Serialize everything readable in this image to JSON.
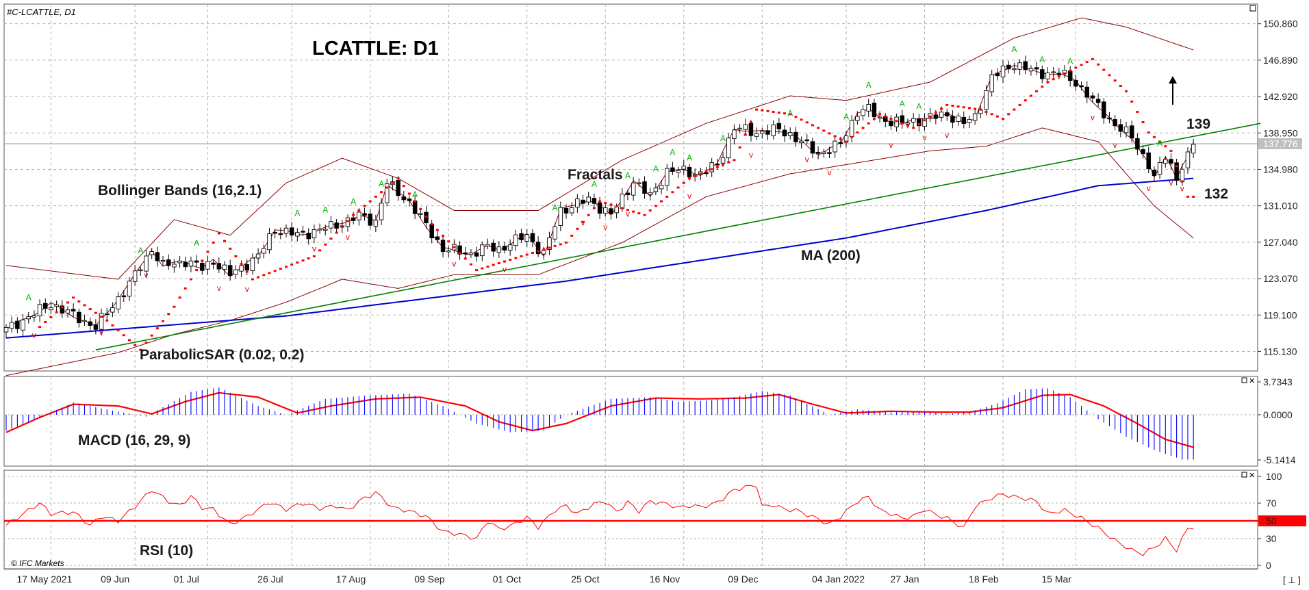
{
  "symbol": "#C-LCATTLE, D1",
  "title": "LCATTLE: D1",
  "brand": "© IFC Markets",
  "corner_label": "[ ⊥ ]",
  "colors": {
    "bull": "#ffffff",
    "bear": "#000000",
    "wick": "#000000",
    "bollinger": "#8b0000",
    "ma": "#0000cc",
    "trend": "#008000",
    "sar": "#ff0000",
    "fractal_up": "#00b000",
    "fractal_down": "#e00000",
    "macd_hist": "#0000ff",
    "macd_signal": "#ff0000",
    "rsi": "#ff0000",
    "rsi_level": "#ff0000",
    "grid": "#b0b0b0",
    "price_tag": "#c0c0c0",
    "level_tag": "#ff0000"
  },
  "annotations": {
    "bollinger": "Bollinger Bands (16,2.1)",
    "fractals": "Fractals",
    "ma": "MA (200)",
    "sar": "ParabolicSAR (0.02, 0.2)",
    "macd": "MACD (16, 29, 9)",
    "rsi": "RSI (10)",
    "target_up": "139",
    "target_down": "132"
  },
  "chart_data": [
    {
      "type": "candlestick",
      "panel": "price",
      "title": "LCATTLE: D1",
      "y_ticks": [
        "150.860",
        "146.890",
        "142.920",
        "138.950",
        "134.980",
        "131.010",
        "127.040",
        "123.070",
        "119.100",
        "115.130"
      ],
      "ylim": [
        113.0,
        153.0
      ],
      "current_price": "137.776",
      "x_tick_labels": [
        "17 May 2021",
        "09 Jun",
        "01 Jul",
        "26 Jul",
        "17 Aug",
        "09 Sep",
        "01 Oct",
        "25 Oct",
        "16 Nov",
        "09 Dec",
        "04 Jan 2022",
        "27 Jan",
        "18 Feb",
        "15 Mar"
      ],
      "anchors_close": [
        [
          0,
          117.5
        ],
        [
          8,
          120.3
        ],
        [
          16,
          117.8
        ],
        [
          22,
          122.5
        ],
        [
          26,
          126.3
        ],
        [
          28,
          124.4
        ],
        [
          32,
          125.0
        ],
        [
          35,
          124.2
        ],
        [
          37,
          125.0
        ],
        [
          40,
          123.5
        ],
        [
          45,
          125.5
        ],
        [
          48,
          128.5
        ],
        [
          52,
          127.8
        ],
        [
          58,
          128.7
        ],
        [
          63,
          129.9
        ],
        [
          66,
          129.3
        ],
        [
          68,
          133.5
        ],
        [
          72,
          131.4
        ],
        [
          78,
          126.3
        ],
        [
          83,
          125.8
        ],
        [
          86,
          126.5
        ],
        [
          88,
          126.3
        ],
        [
          93,
          127.8
        ],
        [
          96,
          125.7
        ],
        [
          99,
          130.5
        ],
        [
          104,
          131.7
        ],
        [
          108,
          130.0
        ],
        [
          112,
          133.7
        ],
        [
          115,
          132.0
        ],
        [
          118,
          134.8
        ],
        [
          121,
          134.8
        ],
        [
          124,
          134.5
        ],
        [
          127,
          135.5
        ],
        [
          130,
          139.5
        ],
        [
          134,
          139.0
        ],
        [
          138,
          139.3
        ],
        [
          140,
          138.8
        ],
        [
          145,
          136.7
        ],
        [
          149,
          137.7
        ],
        [
          152,
          141.3
        ],
        [
          154,
          141.5
        ],
        [
          156,
          140.5
        ],
        [
          160,
          140.0
        ],
        [
          164,
          140.5
        ],
        [
          168,
          141.0
        ],
        [
          171,
          140.0
        ],
        [
          173,
          140.7
        ],
        [
          176,
          145.0
        ],
        [
          180,
          146.5
        ],
        [
          184,
          145.5
        ],
        [
          188,
          145.5
        ],
        [
          191,
          144.5
        ],
        [
          195,
          141.8
        ],
        [
          198,
          139.8
        ],
        [
          201,
          138.5
        ],
        [
          204,
          135.5
        ],
        [
          205,
          134.0
        ],
        [
          207,
          136.5
        ],
        [
          208,
          135.5
        ],
        [
          209,
          134.0
        ],
        [
          210,
          135.3
        ],
        [
          211,
          136.2
        ],
        [
          212,
          137.8
        ]
      ],
      "series": [
        {
          "name": "Bollinger Bands (16,2.1)",
          "upper": [
            [
              0,
              124.5
            ],
            [
              20,
              123.0
            ],
            [
              30,
              129.5
            ],
            [
              40,
              127.8
            ],
            [
              50,
              133.5
            ],
            [
              60,
              136.2
            ],
            [
              70,
              134.0
            ],
            [
              80,
              130.5
            ],
            [
              95,
              130.5
            ],
            [
              110,
              136.0
            ],
            [
              125,
              140.0
            ],
            [
              140,
              143.0
            ],
            [
              150,
              142.5
            ],
            [
              165,
              144.5
            ],
            [
              180,
              149.3
            ],
            [
              192,
              151.5
            ],
            [
              200,
              150.5
            ],
            [
              212,
              148.0
            ]
          ],
          "lower": [
            [
              0,
              112.5
            ],
            [
              20,
              115.0
            ],
            [
              30,
              117.0
            ],
            [
              40,
              118.5
            ],
            [
              50,
              120.5
            ],
            [
              60,
              123.0
            ],
            [
              70,
              122.0
            ],
            [
              80,
              123.5
            ],
            [
              95,
              123.5
            ],
            [
              110,
              127.0
            ],
            [
              125,
              132.0
            ],
            [
              140,
              134.5
            ],
            [
              150,
              135.5
            ],
            [
              165,
              137.0
            ],
            [
              175,
              137.5
            ],
            [
              185,
              139.5
            ],
            [
              195,
              138.0
            ],
            [
              205,
              131.0
            ],
            [
              212,
              127.5
            ]
          ]
        },
        {
          "name": "MA (200)",
          "values": [
            [
              0,
              116.6
            ],
            [
              50,
              119.0
            ],
            [
              100,
              122.8
            ],
            [
              150,
              127.5
            ],
            [
              175,
              130.5
            ],
            [
              195,
              133.2
            ],
            [
              212,
              134.0
            ]
          ]
        },
        {
          "name": "trendline",
          "values": [
            [
              16,
              115.3
            ],
            [
              224,
              140.0
            ]
          ]
        },
        {
          "name": "ParabolicSAR (0.02, 0.2)",
          "values": [
            [
              6,
              117.8
            ],
            [
              12,
              121.0
            ],
            [
              18,
              118.5
            ],
            [
              24,
              115.3
            ],
            [
              30,
              120.0
            ],
            [
              38,
              128.0
            ],
            [
              44,
              123.0
            ],
            [
              55,
              125.5
            ],
            [
              62,
              130.0
            ],
            [
              70,
              134.0
            ],
            [
              76,
              129.0
            ],
            [
              84,
              124.0
            ],
            [
              92,
              125.5
            ],
            [
              100,
              127.0
            ],
            [
              106,
              131.5
            ],
            [
              114,
              130.0
            ],
            [
              122,
              134.0
            ],
            [
              130,
              136.0
            ],
            [
              134,
              141.5
            ],
            [
              140,
              141.0
            ],
            [
              145,
              139.5
            ],
            [
              150,
              138.0
            ],
            [
              156,
              141.0
            ],
            [
              162,
              139.5
            ],
            [
              168,
              142.0
            ],
            [
              174,
              141.5
            ],
            [
              178,
              140.5
            ],
            [
              186,
              144.5
            ],
            [
              194,
              147.0
            ],
            [
              200,
              143.5
            ],
            [
              204,
              139.0
            ],
            [
              208,
              137.0
            ],
            [
              211,
              132.0
            ]
          ]
        },
        {
          "name": "Fractals",
          "up": [
            4,
            24,
            34,
            52,
            57,
            62,
            67,
            73,
            98,
            105,
            111,
            116,
            119,
            122,
            128,
            140,
            150,
            154,
            160,
            163,
            180,
            185,
            190,
            206
          ],
          "down": [
            5,
            17,
            25,
            38,
            43,
            55,
            61,
            80,
            89,
            103,
            107,
            111,
            122,
            133,
            143,
            147,
            158,
            164,
            168,
            194,
            198,
            204,
            208,
            210
          ]
        }
      ]
    },
    {
      "type": "bar",
      "panel": "macd",
      "title": "MACD (16, 29, 9)",
      "y_ticks": [
        "3.7343",
        "0.0000",
        "-5.1414"
      ],
      "ylim": [
        -5.1414,
        3.7343
      ],
      "histogram": [
        [
          0,
          -1.8
        ],
        [
          5,
          -0.6
        ],
        [
          12,
          1.4
        ],
        [
          18,
          0.6
        ],
        [
          25,
          -0.2
        ],
        [
          33,
          2.6
        ],
        [
          38,
          3.1
        ],
        [
          45,
          1.0
        ],
        [
          50,
          0.0
        ],
        [
          57,
          1.8
        ],
        [
          65,
          2.2
        ],
        [
          72,
          2.4
        ],
        [
          78,
          1.0
        ],
        [
          84,
          -1.0
        ],
        [
          90,
          -2.0
        ],
        [
          96,
          -1.8
        ],
        [
          100,
          0.0
        ],
        [
          108,
          1.8
        ],
        [
          115,
          2.0
        ],
        [
          120,
          1.5
        ],
        [
          125,
          1.6
        ],
        [
          130,
          2.0
        ],
        [
          135,
          2.7
        ],
        [
          140,
          2.2
        ],
        [
          147,
          0.0
        ],
        [
          152,
          0.6
        ],
        [
          158,
          0.3
        ],
        [
          163,
          0.4
        ],
        [
          168,
          0.1
        ],
        [
          172,
          0.3
        ],
        [
          177,
          1.3
        ],
        [
          182,
          2.9
        ],
        [
          186,
          3.0
        ],
        [
          190,
          2.0
        ],
        [
          195,
          -0.5
        ],
        [
          200,
          -2.5
        ],
        [
          205,
          -4.0
        ],
        [
          210,
          -5.1
        ]
      ],
      "signal": [
        [
          0,
          -2.0
        ],
        [
          6,
          -0.3
        ],
        [
          12,
          1.2
        ],
        [
          20,
          1.0
        ],
        [
          26,
          0.1
        ],
        [
          32,
          1.5
        ],
        [
          38,
          2.5
        ],
        [
          45,
          2.0
        ],
        [
          52,
          0.2
        ],
        [
          58,
          1.0
        ],
        [
          66,
          1.8
        ],
        [
          74,
          2.0
        ],
        [
          82,
          1.0
        ],
        [
          88,
          -0.8
        ],
        [
          94,
          -1.8
        ],
        [
          100,
          -1.0
        ],
        [
          108,
          1.0
        ],
        [
          116,
          1.9
        ],
        [
          124,
          1.8
        ],
        [
          132,
          1.9
        ],
        [
          138,
          2.3
        ],
        [
          144,
          1.2
        ],
        [
          150,
          0.2
        ],
        [
          158,
          0.4
        ],
        [
          166,
          0.3
        ],
        [
          172,
          0.3
        ],
        [
          178,
          0.8
        ],
        [
          185,
          2.2
        ],
        [
          190,
          2.3
        ],
        [
          196,
          1.0
        ],
        [
          202,
          -1.0
        ],
        [
          207,
          -2.8
        ],
        [
          212,
          -3.7
        ]
      ]
    },
    {
      "type": "line",
      "panel": "rsi",
      "title": "RSI (10)",
      "y_ticks": [
        "100",
        "70",
        "50",
        "30",
        "0"
      ],
      "ylim": [
        0,
        100
      ],
      "level": 50,
      "values": [
        [
          0,
          45
        ],
        [
          4,
          62
        ],
        [
          6,
          70
        ],
        [
          8,
          58
        ],
        [
          12,
          60
        ],
        [
          15,
          45
        ],
        [
          17,
          55
        ],
        [
          20,
          50
        ],
        [
          23,
          66
        ],
        [
          26,
          85
        ],
        [
          29,
          72
        ],
        [
          31,
          67
        ],
        [
          33,
          78
        ],
        [
          35,
          65
        ],
        [
          37,
          63
        ],
        [
          40,
          46
        ],
        [
          43,
          55
        ],
        [
          47,
          71
        ],
        [
          50,
          63
        ],
        [
          53,
          70
        ],
        [
          56,
          64
        ],
        [
          59,
          67
        ],
        [
          61,
          62
        ],
        [
          63,
          72
        ],
        [
          66,
          82
        ],
        [
          69,
          65
        ],
        [
          72,
          61
        ],
        [
          75,
          55
        ],
        [
          78,
          38
        ],
        [
          81,
          35
        ],
        [
          84,
          30
        ],
        [
          86,
          50
        ],
        [
          88,
          41
        ],
        [
          90,
          44
        ],
        [
          93,
          54
        ],
        [
          95,
          43
        ],
        [
          98,
          62
        ],
        [
          100,
          67
        ],
        [
          102,
          58
        ],
        [
          105,
          69
        ],
        [
          107,
          72
        ],
        [
          109,
          60
        ],
        [
          111,
          71
        ],
        [
          113,
          61
        ],
        [
          115,
          72
        ],
        [
          118,
          69
        ],
        [
          120,
          65
        ],
        [
          122,
          67
        ],
        [
          124,
          66
        ],
        [
          126,
          68
        ],
        [
          128,
          75
        ],
        [
          130,
          85
        ],
        [
          132,
          88
        ],
        [
          134,
          90
        ],
        [
          135,
          66
        ],
        [
          137,
          68
        ],
        [
          139,
          63
        ],
        [
          141,
          62
        ],
        [
          143,
          57
        ],
        [
          145,
          52
        ],
        [
          147,
          46
        ],
        [
          149,
          55
        ],
        [
          152,
          72
        ],
        [
          154,
          77
        ],
        [
          156,
          62
        ],
        [
          158,
          58
        ],
        [
          160,
          53
        ],
        [
          162,
          55
        ],
        [
          164,
          63
        ],
        [
          166,
          57
        ],
        [
          168,
          53
        ],
        [
          171,
          42
        ],
        [
          173,
          66
        ],
        [
          176,
          76
        ],
        [
          178,
          80
        ],
        [
          180,
          77
        ],
        [
          182,
          75
        ],
        [
          184,
          72
        ],
        [
          186,
          58
        ],
        [
          189,
          62
        ],
        [
          192,
          53
        ],
        [
          195,
          42
        ],
        [
          198,
          28
        ],
        [
          201,
          17
        ],
        [
          203,
          13
        ],
        [
          205,
          20
        ],
        [
          207,
          30
        ],
        [
          209,
          17
        ],
        [
          211,
          42
        ],
        [
          212,
          43
        ]
      ]
    }
  ]
}
